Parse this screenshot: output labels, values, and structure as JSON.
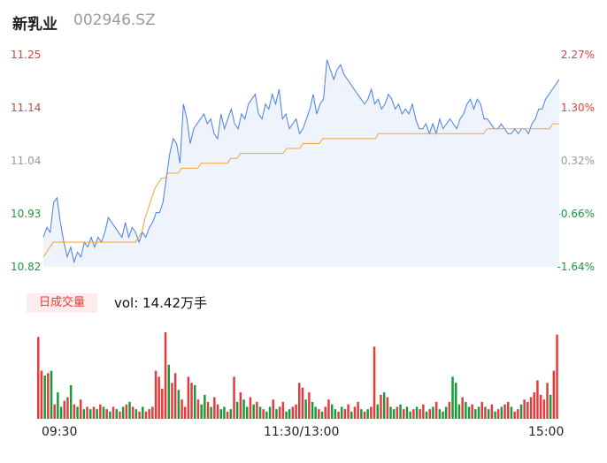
{
  "header": {
    "name": "新乳业",
    "code": "002946.SZ"
  },
  "chart_data": {
    "type": "line",
    "price_axis": {
      "left_ticks": [
        "11.25",
        "11.14",
        "11.04",
        "10.93",
        "10.82"
      ],
      "right_ticks": [
        "2.27%",
        "1.30%",
        "0.32%",
        "-0.66%",
        "-1.64%"
      ],
      "ylim": [
        10.82,
        11.25
      ],
      "up_color": "#e63b3b",
      "down_color": "#1a9a3c",
      "flat_color": "#9a9a9a"
    },
    "x_ticks": [
      "09:30",
      "11:30/13:00",
      "15:00"
    ],
    "series": [
      {
        "name": "price",
        "color": "#4a7fe0",
        "values": [
          10.88,
          10.9,
          10.89,
          10.95,
          10.96,
          10.91,
          10.87,
          10.84,
          10.86,
          10.83,
          10.85,
          10.84,
          10.87,
          10.86,
          10.88,
          10.86,
          10.88,
          10.87,
          10.89,
          10.92,
          10.91,
          10.9,
          10.89,
          10.88,
          10.91,
          10.88,
          10.9,
          10.89,
          10.87,
          10.89,
          10.88,
          10.9,
          10.91,
          10.93,
          10.93,
          10.95,
          11.0,
          11.05,
          11.08,
          11.07,
          11.03,
          11.15,
          11.12,
          11.07,
          11.1,
          11.11,
          11.12,
          11.13,
          11.11,
          11.12,
          11.09,
          11.08,
          11.13,
          11.1,
          11.12,
          11.14,
          11.11,
          11.1,
          11.13,
          11.12,
          11.15,
          11.16,
          11.17,
          11.13,
          11.12,
          11.15,
          11.14,
          11.17,
          11.15,
          11.18,
          11.12,
          11.13,
          11.1,
          11.11,
          11.12,
          11.09,
          11.1,
          11.12,
          11.14,
          11.17,
          11.13,
          11.15,
          11.16,
          11.24,
          11.22,
          11.2,
          11.22,
          11.23,
          11.21,
          11.2,
          11.19,
          11.18,
          11.17,
          11.16,
          11.15,
          11.16,
          11.18,
          11.15,
          11.16,
          11.14,
          11.15,
          11.17,
          11.16,
          11.14,
          11.15,
          11.13,
          11.14,
          11.13,
          11.15,
          11.12,
          11.1,
          11.1,
          11.11,
          11.09,
          11.11,
          11.09,
          11.12,
          11.1,
          11.11,
          11.12,
          11.11,
          11.1,
          11.12,
          11.13,
          11.15,
          11.16,
          11.14,
          11.16,
          11.15,
          11.12,
          11.12,
          11.11,
          11.1,
          11.1,
          11.11,
          11.1,
          11.09,
          11.09,
          11.1,
          11.09,
          11.1,
          11.1,
          11.09,
          11.11,
          11.12,
          11.14,
          11.14,
          11.16,
          11.17,
          11.18,
          11.19,
          11.2
        ]
      },
      {
        "name": "avg",
        "color": "#f2a33a",
        "values": [
          10.84,
          10.85,
          10.86,
          10.87,
          10.87,
          10.87,
          10.87,
          10.87,
          10.87,
          10.87,
          10.87,
          10.87,
          10.87,
          10.87,
          10.87,
          10.87,
          10.87,
          10.87,
          10.87,
          10.87,
          10.87,
          10.87,
          10.87,
          10.87,
          10.87,
          10.87,
          10.87,
          10.87,
          10.87,
          10.88,
          10.89,
          10.92,
          10.94,
          10.96,
          10.98,
          10.99,
          11.0,
          11.0,
          11.01,
          11.01,
          11.01,
          11.01,
          11.02,
          11.02,
          11.02,
          11.02,
          11.02,
          11.02,
          11.03,
          11.03,
          11.03,
          11.03,
          11.03,
          11.03,
          11.03,
          11.03,
          11.03,
          11.04,
          11.04,
          11.04,
          11.05,
          11.05,
          11.05,
          11.05,
          11.05,
          11.05,
          11.05,
          11.05,
          11.05,
          11.05,
          11.05,
          11.05,
          11.05,
          11.05,
          11.06,
          11.06,
          11.06,
          11.06,
          11.06,
          11.07,
          11.07,
          11.07,
          11.07,
          11.07,
          11.07,
          11.08,
          11.08,
          11.08,
          11.08,
          11.08,
          11.08,
          11.08,
          11.08,
          11.08,
          11.08,
          11.08,
          11.08,
          11.08,
          11.08,
          11.08,
          11.08,
          11.08,
          11.09,
          11.09,
          11.09,
          11.09,
          11.09,
          11.09,
          11.09,
          11.09,
          11.09,
          11.09,
          11.09,
          11.09,
          11.09,
          11.09,
          11.09,
          11.09,
          11.09,
          11.09,
          11.09,
          11.09,
          11.09,
          11.09,
          11.09,
          11.09,
          11.09,
          11.09,
          11.09,
          11.09,
          11.09,
          11.09,
          11.09,
          11.09,
          11.09,
          11.1,
          11.1,
          11.1,
          11.1,
          11.1,
          11.1,
          11.1,
          11.1,
          11.1,
          11.1,
          11.1,
          11.1,
          11.1,
          11.1,
          11.1,
          11.1,
          11.1,
          11.1,
          11.1,
          11.1,
          11.11,
          11.11,
          11.11
        ]
      }
    ],
    "volume": {
      "badge": "日成交量",
      "label": "vol: 14.42万手",
      "values": [
        68,
        40,
        36,
        38,
        40,
        12,
        22,
        10,
        15,
        18,
        28,
        12,
        10,
        16,
        8,
        10,
        8,
        10,
        8,
        12,
        10,
        8,
        6,
        10,
        8,
        6,
        10,
        12,
        14,
        10,
        8,
        6,
        10,
        6,
        8,
        10,
        40,
        35,
        25,
        72,
        45,
        30,
        38,
        24,
        16,
        10,
        35,
        30,
        28,
        16,
        12,
        20,
        14,
        10,
        18,
        12,
        8,
        10,
        6,
        8,
        35,
        14,
        22,
        16,
        10,
        18,
        12,
        14,
        10,
        8,
        6,
        10,
        16,
        8,
        10,
        14,
        6,
        8,
        10,
        12,
        30,
        26,
        16,
        22,
        14,
        10,
        8,
        6,
        10,
        16,
        12,
        8,
        6,
        10,
        8,
        12,
        6,
        10,
        14,
        8,
        6,
        8,
        10,
        60,
        12,
        20,
        22,
        18,
        10,
        8,
        10,
        12,
        8,
        10,
        6,
        8,
        10,
        8,
        12,
        6,
        8,
        10,
        14,
        8,
        6,
        10,
        14,
        35,
        30,
        12,
        18,
        14,
        10,
        12,
        8,
        10,
        14,
        10,
        8,
        12,
        6,
        8,
        10,
        12,
        14,
        10,
        6,
        8,
        12,
        16,
        14,
        18,
        22,
        32,
        20,
        16,
        30,
        20,
        40,
        70
      ],
      "colors": [
        "r",
        "r",
        "g",
        "r",
        "g",
        "r",
        "g",
        "g",
        "r",
        "r",
        "g",
        "r",
        "g",
        "r",
        "g",
        "r",
        "g",
        "r",
        "g",
        "r",
        "g",
        "r",
        "g",
        "r",
        "g",
        "r",
        "g",
        "r",
        "g",
        "r",
        "g",
        "r",
        "g",
        "r",
        "r",
        "r",
        "r",
        "r",
        "r",
        "r",
        "g",
        "r",
        "r",
        "g",
        "r",
        "r",
        "r",
        "r",
        "g",
        "r",
        "g",
        "g",
        "r",
        "g",
        "r",
        "r",
        "g",
        "g",
        "r",
        "g",
        "r",
        "g",
        "r",
        "g",
        "g",
        "r",
        "g",
        "r",
        "g",
        "r",
        "g",
        "g",
        "r",
        "g",
        "r",
        "r",
        "g",
        "g",
        "r",
        "r",
        "r",
        "r",
        "g",
        "r",
        "g",
        "g",
        "r",
        "g",
        "r",
        "r",
        "g",
        "g",
        "r",
        "g",
        "r",
        "r",
        "g",
        "r",
        "r",
        "g",
        "r",
        "g",
        "r",
        "r",
        "g",
        "r",
        "g",
        "r",
        "g",
        "g",
        "r",
        "g",
        "r",
        "g",
        "g",
        "r",
        "g",
        "r",
        "r",
        "g",
        "r",
        "g",
        "r",
        "g",
        "g",
        "g",
        "r",
        "g",
        "g",
        "g",
        "r",
        "g",
        "g",
        "r",
        "g",
        "g",
        "r",
        "r",
        "g",
        "r",
        "g",
        "r",
        "g",
        "r",
        "r",
        "g",
        "r",
        "r",
        "g",
        "r",
        "r",
        "r",
        "r",
        "r",
        "r",
        "r",
        "r",
        "g",
        "r",
        "r"
      ],
      "red_color": "#e63b3b",
      "green_color": "#1a9a3c"
    }
  }
}
